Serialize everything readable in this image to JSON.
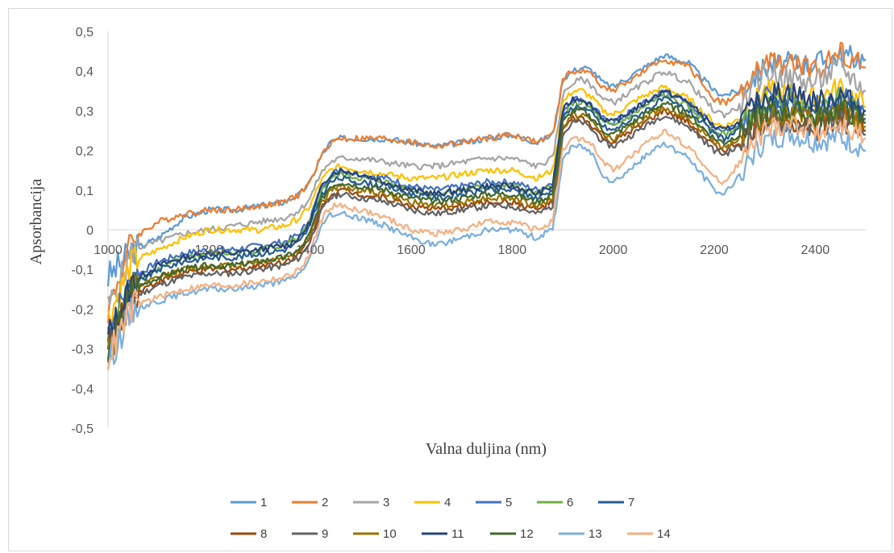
{
  "chart_data": {
    "type": "line",
    "title": "",
    "xlabel": "Valna duljina (nm)",
    "ylabel": "Apsorbancija",
    "xlim": [
      1000,
      2500
    ],
    "ylim": [
      -0.5,
      0.5
    ],
    "x_ticks": [
      1000,
      1200,
      1400,
      1600,
      1800,
      2000,
      2200,
      2400
    ],
    "x_tick_labels": [
      "1000",
      "1200",
      "1400",
      "1600",
      "1800",
      "2000",
      "2200",
      "2400"
    ],
    "y_ticks": [
      -0.5,
      -0.4,
      -0.3,
      -0.2,
      -0.1,
      0,
      0.1,
      0.2,
      0.3,
      0.4,
      0.5
    ],
    "y_tick_labels": [
      "-0,5",
      "-0,4",
      "-0,3",
      "-0,2",
      "-0,1",
      "0",
      "0,1",
      "0,2",
      "0,3",
      "0,4",
      "0,5"
    ],
    "grid": false,
    "legend_position": "bottom",
    "x": [
      1000,
      1050,
      1100,
      1150,
      1200,
      1250,
      1300,
      1350,
      1380,
      1400,
      1420,
      1440,
      1460,
      1500,
      1550,
      1600,
      1650,
      1700,
      1750,
      1800,
      1850,
      1880,
      1890,
      1900,
      1920,
      1940,
      1960,
      1980,
      2000,
      2050,
      2100,
      2150,
      2200,
      2220,
      2250,
      2300,
      2350,
      2400,
      2450,
      2500
    ],
    "series": [
      {
        "name": "1",
        "color": "#5b9bd5",
        "values": [
          -0.12,
          -0.05,
          -0.02,
          0.03,
          0.05,
          0.05,
          0.06,
          0.07,
          0.09,
          0.12,
          0.18,
          0.22,
          0.23,
          0.23,
          0.23,
          0.22,
          0.21,
          0.22,
          0.23,
          0.24,
          0.22,
          0.24,
          0.3,
          0.38,
          0.4,
          0.41,
          0.4,
          0.37,
          0.36,
          0.4,
          0.44,
          0.42,
          0.35,
          0.34,
          0.35,
          0.41,
          0.42,
          0.42,
          0.44,
          0.43
        ]
      },
      {
        "name": "2",
        "color": "#ed7d31",
        "values": [
          -0.2,
          -0.02,
          0.02,
          0.04,
          0.05,
          0.05,
          0.06,
          0.07,
          0.09,
          0.12,
          0.18,
          0.22,
          0.23,
          0.23,
          0.23,
          0.22,
          0.21,
          0.22,
          0.23,
          0.24,
          0.22,
          0.24,
          0.3,
          0.38,
          0.4,
          0.4,
          0.39,
          0.36,
          0.35,
          0.39,
          0.43,
          0.41,
          0.33,
          0.32,
          0.34,
          0.42,
          0.42,
          0.4,
          0.45,
          0.41
        ]
      },
      {
        "name": "3",
        "color": "#a5a5a5",
        "values": [
          -0.2,
          -0.05,
          -0.03,
          -0.01,
          0.0,
          0.01,
          0.02,
          0.03,
          0.05,
          0.08,
          0.14,
          0.17,
          0.18,
          0.18,
          0.17,
          0.16,
          0.16,
          0.17,
          0.18,
          0.18,
          0.16,
          0.18,
          0.25,
          0.34,
          0.37,
          0.38,
          0.36,
          0.33,
          0.32,
          0.36,
          0.4,
          0.37,
          0.3,
          0.29,
          0.31,
          0.4,
          0.38,
          0.37,
          0.41,
          0.35
        ]
      },
      {
        "name": "4",
        "color": "#ffc000",
        "values": [
          -0.22,
          -0.08,
          -0.05,
          -0.02,
          0.0,
          0.0,
          0.0,
          0.01,
          0.03,
          0.06,
          0.12,
          0.15,
          0.16,
          0.15,
          0.14,
          0.13,
          0.13,
          0.14,
          0.15,
          0.15,
          0.13,
          0.15,
          0.22,
          0.32,
          0.35,
          0.35,
          0.33,
          0.3,
          0.29,
          0.33,
          0.36,
          0.33,
          0.27,
          0.26,
          0.28,
          0.35,
          0.34,
          0.33,
          0.36,
          0.31
        ]
      },
      {
        "name": "5",
        "color": "#4472c4",
        "values": [
          -0.25,
          -0.12,
          -0.08,
          -0.06,
          -0.05,
          -0.05,
          -0.04,
          -0.03,
          -0.01,
          0.03,
          0.1,
          0.14,
          0.15,
          0.14,
          0.13,
          0.11,
          0.1,
          0.11,
          0.12,
          0.12,
          0.1,
          0.12,
          0.2,
          0.3,
          0.33,
          0.33,
          0.31,
          0.28,
          0.27,
          0.31,
          0.35,
          0.32,
          0.26,
          0.25,
          0.27,
          0.33,
          0.33,
          0.31,
          0.34,
          0.3
        ]
      },
      {
        "name": "6",
        "color": "#70ad47",
        "values": [
          -0.27,
          -0.13,
          -0.1,
          -0.07,
          -0.06,
          -0.06,
          -0.05,
          -0.04,
          -0.02,
          0.02,
          0.09,
          0.13,
          0.14,
          0.13,
          0.12,
          0.1,
          0.09,
          0.1,
          0.11,
          0.11,
          0.09,
          0.11,
          0.19,
          0.29,
          0.32,
          0.32,
          0.3,
          0.27,
          0.26,
          0.3,
          0.34,
          0.31,
          0.25,
          0.24,
          0.26,
          0.32,
          0.32,
          0.3,
          0.33,
          0.29
        ]
      },
      {
        "name": "7",
        "color": "#255e91",
        "values": [
          -0.28,
          -0.14,
          -0.1,
          -0.08,
          -0.07,
          -0.07,
          -0.06,
          -0.05,
          -0.03,
          0.01,
          0.08,
          0.12,
          0.13,
          0.12,
          0.11,
          0.09,
          0.08,
          0.09,
          0.1,
          0.1,
          0.08,
          0.1,
          0.18,
          0.28,
          0.31,
          0.31,
          0.29,
          0.26,
          0.25,
          0.29,
          0.33,
          0.3,
          0.24,
          0.23,
          0.25,
          0.31,
          0.31,
          0.29,
          0.32,
          0.28
        ]
      },
      {
        "name": "8",
        "color": "#9e480e",
        "values": [
          -0.3,
          -0.16,
          -0.13,
          -0.11,
          -0.1,
          -0.1,
          -0.09,
          -0.08,
          -0.06,
          -0.02,
          0.05,
          0.09,
          0.1,
          0.09,
          0.08,
          0.06,
          0.05,
          0.06,
          0.07,
          0.07,
          0.05,
          0.07,
          0.15,
          0.25,
          0.28,
          0.28,
          0.26,
          0.23,
          0.22,
          0.26,
          0.3,
          0.27,
          0.21,
          0.2,
          0.22,
          0.28,
          0.28,
          0.26,
          0.29,
          0.25
        ]
      },
      {
        "name": "9",
        "color": "#636363",
        "values": [
          -0.31,
          -0.17,
          -0.14,
          -0.12,
          -0.11,
          -0.11,
          -0.1,
          -0.09,
          -0.07,
          -0.03,
          0.04,
          0.08,
          0.09,
          0.08,
          0.07,
          0.05,
          0.04,
          0.05,
          0.06,
          0.06,
          0.04,
          0.06,
          0.14,
          0.24,
          0.27,
          0.27,
          0.25,
          0.22,
          0.21,
          0.25,
          0.29,
          0.26,
          0.2,
          0.19,
          0.21,
          0.27,
          0.27,
          0.25,
          0.28,
          0.24
        ]
      },
      {
        "name": "10",
        "color": "#997300",
        "values": [
          -0.29,
          -0.15,
          -0.12,
          -0.1,
          -0.09,
          -0.09,
          -0.08,
          -0.07,
          -0.05,
          -0.01,
          0.06,
          0.1,
          0.11,
          0.1,
          0.09,
          0.07,
          0.06,
          0.07,
          0.08,
          0.08,
          0.06,
          0.08,
          0.16,
          0.26,
          0.29,
          0.29,
          0.27,
          0.24,
          0.23,
          0.27,
          0.31,
          0.28,
          0.22,
          0.21,
          0.23,
          0.29,
          0.29,
          0.27,
          0.3,
          0.26
        ]
      },
      {
        "name": "11",
        "color": "#264478",
        "values": [
          -0.27,
          -0.13,
          -0.09,
          -0.07,
          -0.06,
          -0.06,
          -0.05,
          -0.04,
          -0.02,
          0.02,
          0.1,
          0.14,
          0.15,
          0.14,
          0.12,
          0.1,
          0.09,
          0.1,
          0.11,
          0.11,
          0.09,
          0.11,
          0.2,
          0.3,
          0.33,
          0.33,
          0.31,
          0.28,
          0.27,
          0.31,
          0.35,
          0.32,
          0.26,
          0.25,
          0.27,
          0.34,
          0.35,
          0.32,
          0.34,
          0.3
        ]
      },
      {
        "name": "12",
        "color": "#43682b",
        "values": [
          -0.32,
          -0.15,
          -0.12,
          -0.1,
          -0.09,
          -0.09,
          -0.08,
          -0.07,
          -0.05,
          -0.01,
          0.07,
          0.11,
          0.12,
          0.11,
          0.1,
          0.08,
          0.07,
          0.08,
          0.09,
          0.09,
          0.07,
          0.09,
          0.17,
          0.27,
          0.3,
          0.3,
          0.28,
          0.25,
          0.24,
          0.28,
          0.32,
          0.29,
          0.23,
          0.22,
          0.24,
          0.3,
          0.3,
          0.28,
          0.31,
          0.27
        ]
      },
      {
        "name": "13",
        "color": "#7cafdd",
        "values": [
          -0.33,
          -0.2,
          -0.18,
          -0.16,
          -0.15,
          -0.15,
          -0.14,
          -0.13,
          -0.11,
          -0.07,
          0.0,
          0.04,
          0.04,
          0.03,
          0.01,
          -0.02,
          -0.04,
          -0.02,
          0.0,
          0.0,
          -0.02,
          0.0,
          0.08,
          0.18,
          0.21,
          0.21,
          0.19,
          0.14,
          0.12,
          0.17,
          0.22,
          0.18,
          0.1,
          0.09,
          0.14,
          0.22,
          0.24,
          0.22,
          0.23,
          0.2
        ]
      },
      {
        "name": "14",
        "color": "#f4b183",
        "values": [
          -0.32,
          -0.19,
          -0.17,
          -0.15,
          -0.14,
          -0.14,
          -0.13,
          -0.12,
          -0.1,
          -0.06,
          0.02,
          0.06,
          0.06,
          0.05,
          0.03,
          0.0,
          -0.01,
          0.0,
          0.02,
          0.02,
          0.0,
          0.02,
          0.1,
          0.2,
          0.23,
          0.23,
          0.21,
          0.17,
          0.15,
          0.2,
          0.25,
          0.21,
          0.13,
          0.12,
          0.17,
          0.25,
          0.27,
          0.25,
          0.26,
          0.23
        ]
      }
    ]
  }
}
